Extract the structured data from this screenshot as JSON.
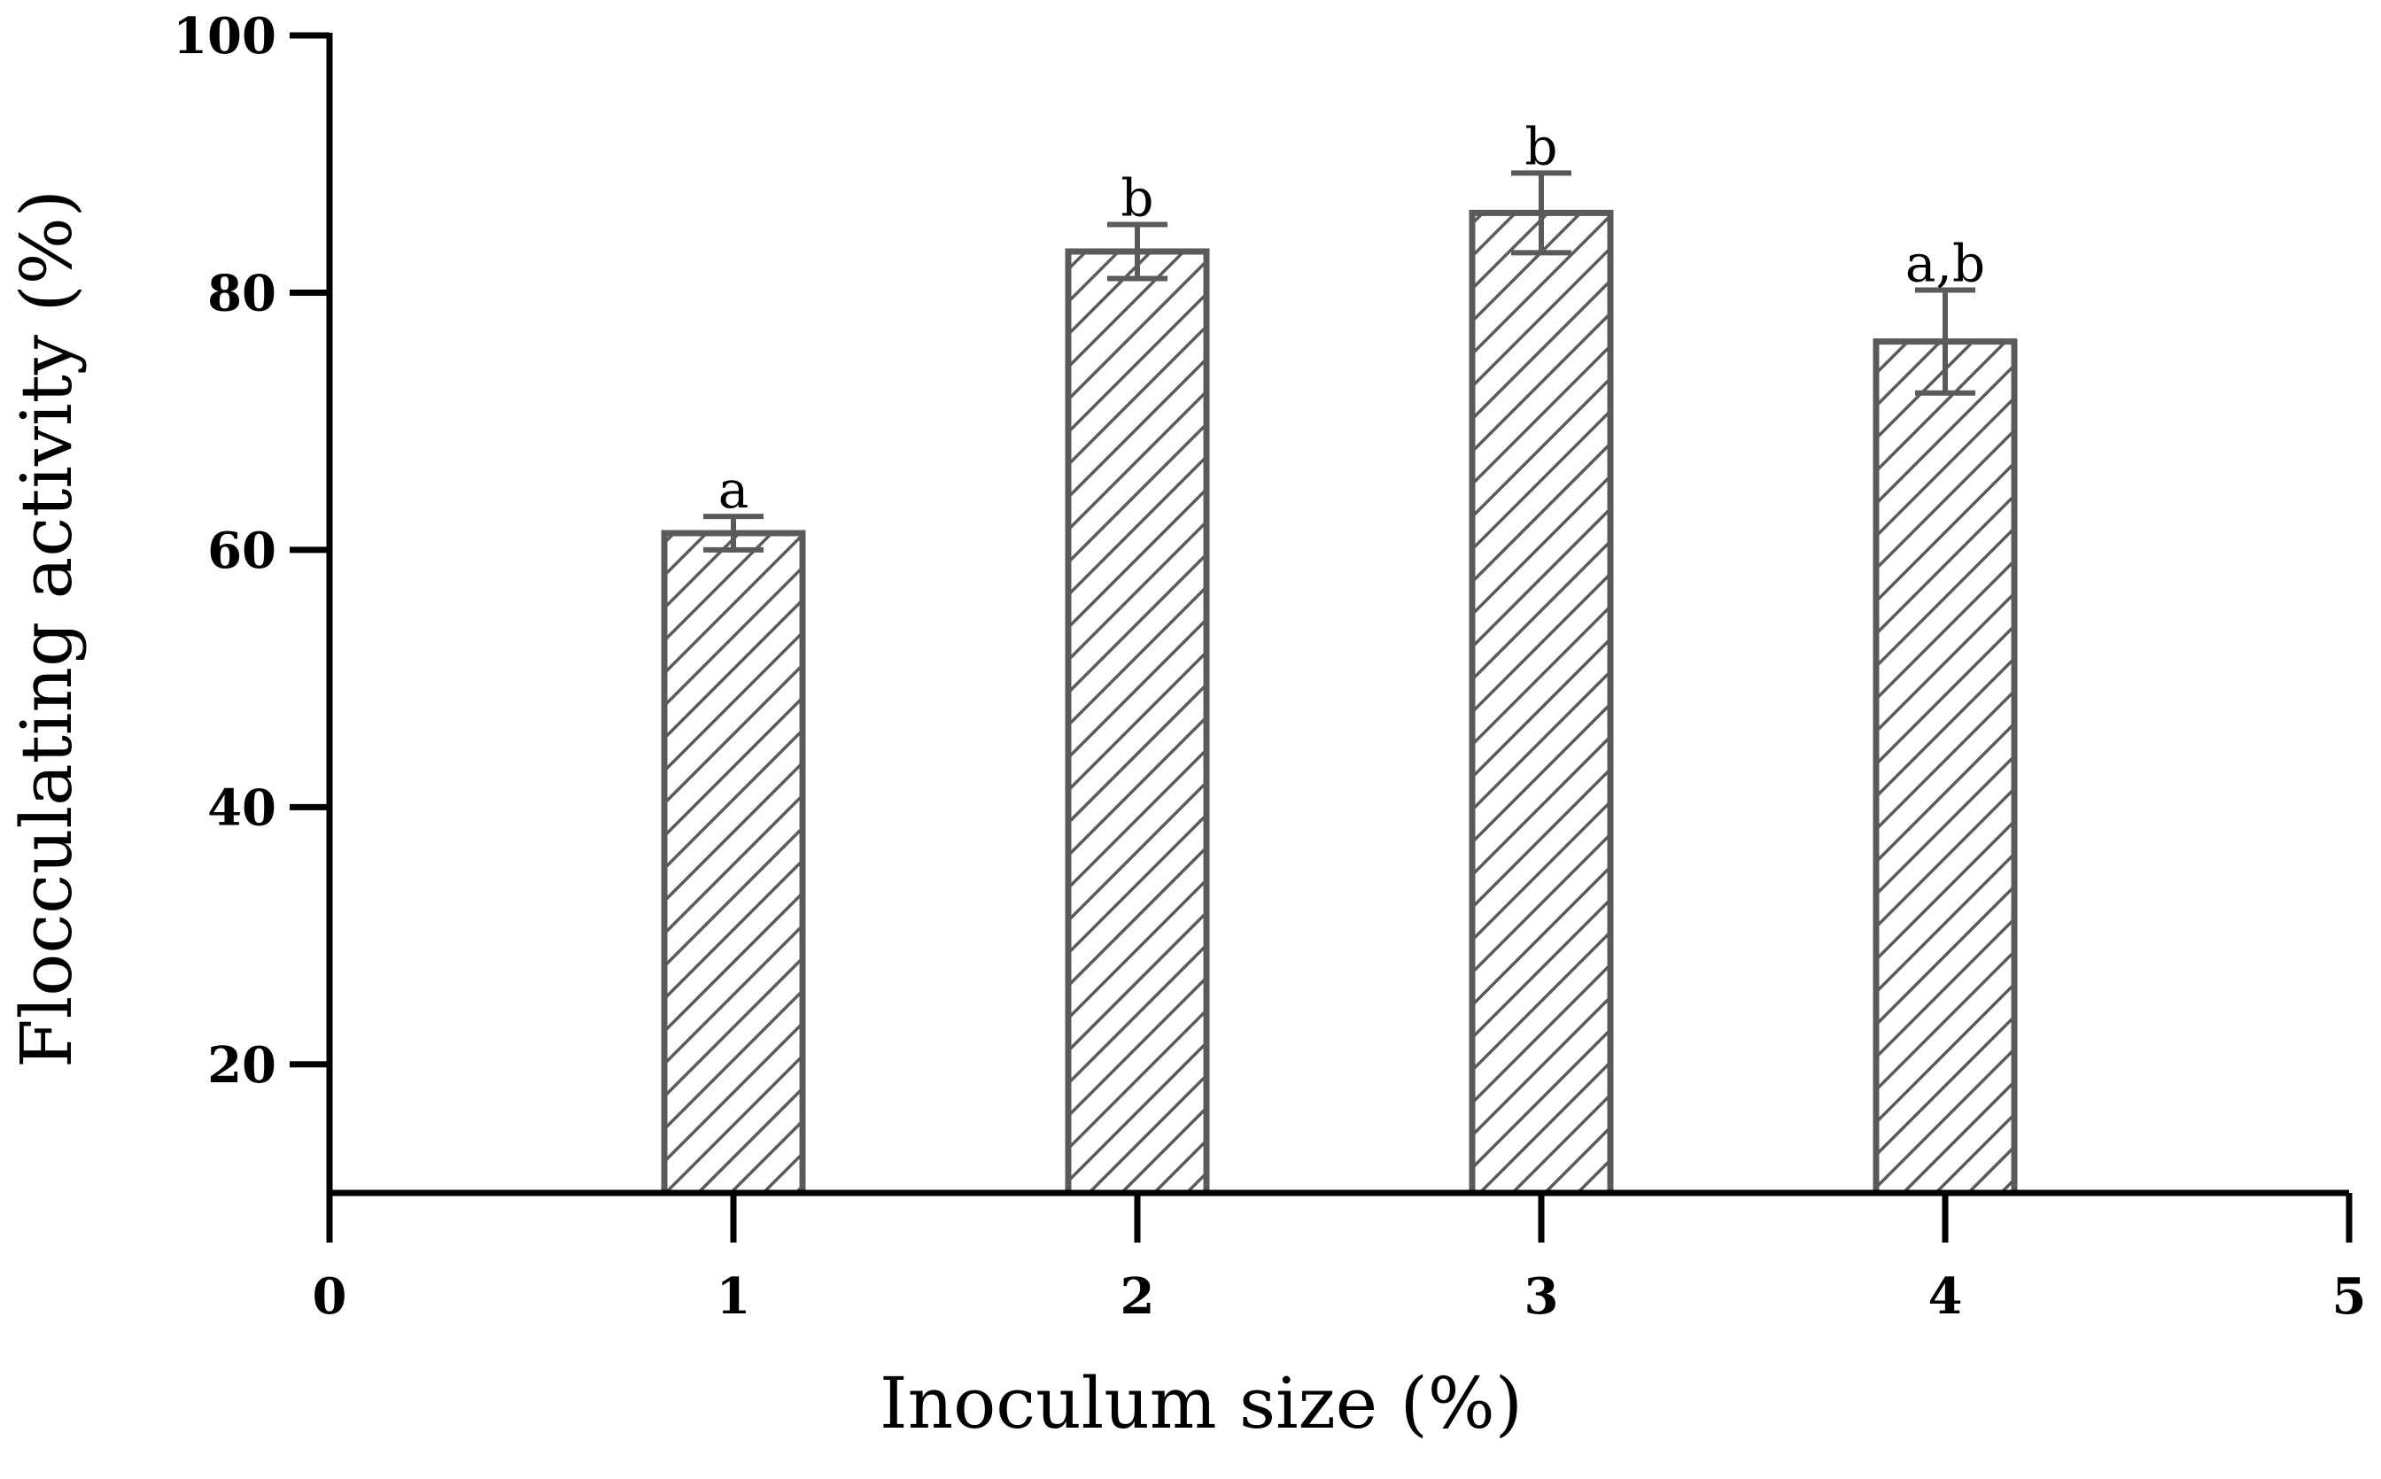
{
  "chart_data": {
    "type": "bar",
    "title": "",
    "xlabel": "Inoculum size (%)",
    "ylabel": "Flocculating activity (%)",
    "xlim": [
      0,
      5
    ],
    "ylim": [
      10,
      100
    ],
    "xticks": [
      "0",
      "1",
      "2",
      "3",
      "4",
      "5"
    ],
    "yticks": [
      "20",
      "40",
      "60",
      "80",
      "100"
    ],
    "x": [
      1,
      2,
      3,
      4
    ],
    "values": [
      61.3,
      83.2,
      86.2,
      76.2
    ],
    "errors": [
      1.3,
      2.1,
      3.1,
      4.0
    ],
    "significance_labels": [
      "a",
      "b",
      "b",
      "a,b"
    ],
    "grid": false,
    "legend": "none"
  },
  "style": {
    "bar_outline": "#5a5a5a",
    "hatch_color": "#5a5a5a",
    "axis_color": "#000000",
    "background": "#ffffff"
  }
}
